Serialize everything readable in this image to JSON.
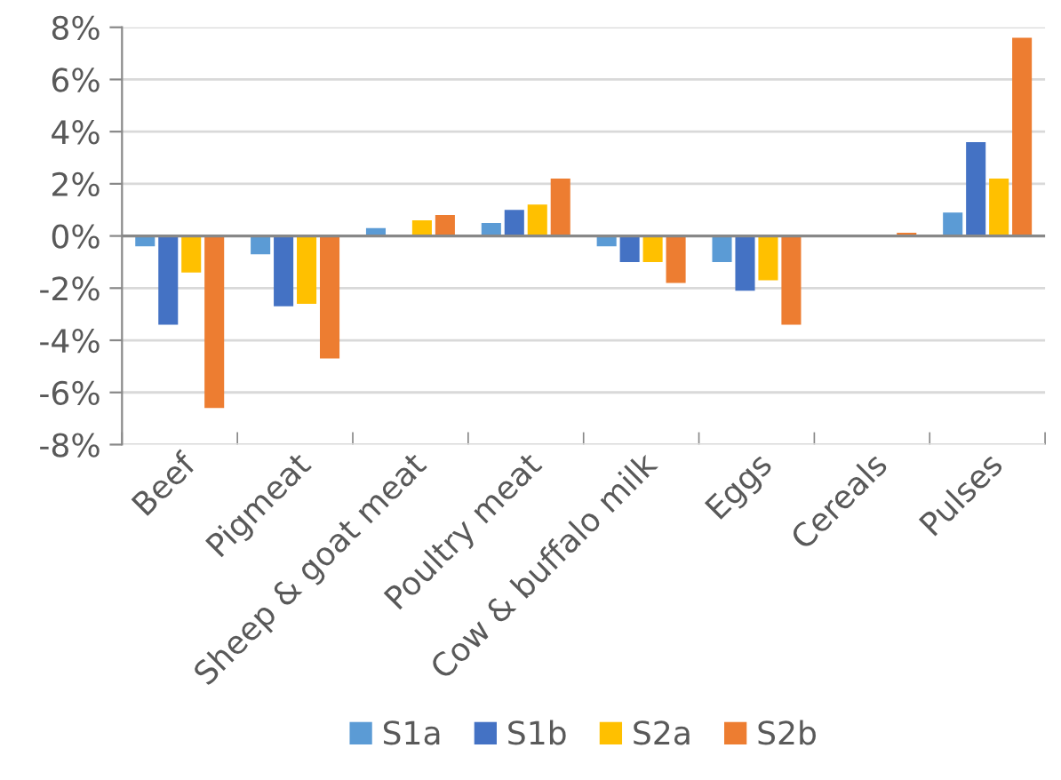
{
  "chart_data": {
    "type": "bar",
    "categories": [
      "Beef",
      "Pigmeat",
      "Sheep & goat meat",
      "Poultry meat",
      "Cow & buffalo milk",
      "Eggs",
      "Cereals",
      "Pulses"
    ],
    "series": [
      {
        "name": "S1a",
        "color": "#5b9bd5",
        "values": [
          -0.4,
          -0.7,
          0.3,
          0.5,
          -0.4,
          -1.0,
          0,
          0.9
        ]
      },
      {
        "name": "S1b",
        "color": "#4472c4",
        "values": [
          -3.4,
          -2.7,
          0,
          1.0,
          -1.0,
          -2.1,
          0.02,
          3.6
        ]
      },
      {
        "name": "S2a",
        "color": "#ffc000",
        "values": [
          -1.4,
          -2.6,
          0.6,
          1.2,
          -1.0,
          -1.7,
          0,
          2.2
        ]
      },
      {
        "name": "S2b",
        "color": "#ed7d31",
        "values": [
          -6.6,
          -4.7,
          0.8,
          2.2,
          -1.8,
          -3.4,
          0.12,
          7.6
        ]
      }
    ],
    "ylim": [
      -8,
      8
    ],
    "yticks": [
      {
        "value": -8,
        "label": "-8%"
      },
      {
        "value": -6,
        "label": "-6%"
      },
      {
        "value": -4,
        "label": "-4%"
      },
      {
        "value": -2,
        "label": "-2%"
      },
      {
        "value": 0,
        "label": "0%"
      },
      {
        "value": 2,
        "label": "2%"
      },
      {
        "value": 4,
        "label": "4%"
      },
      {
        "value": 6,
        "label": "6%"
      },
      {
        "value": 8,
        "label": "8%"
      }
    ],
    "grid": "y",
    "legend": "bottom"
  }
}
